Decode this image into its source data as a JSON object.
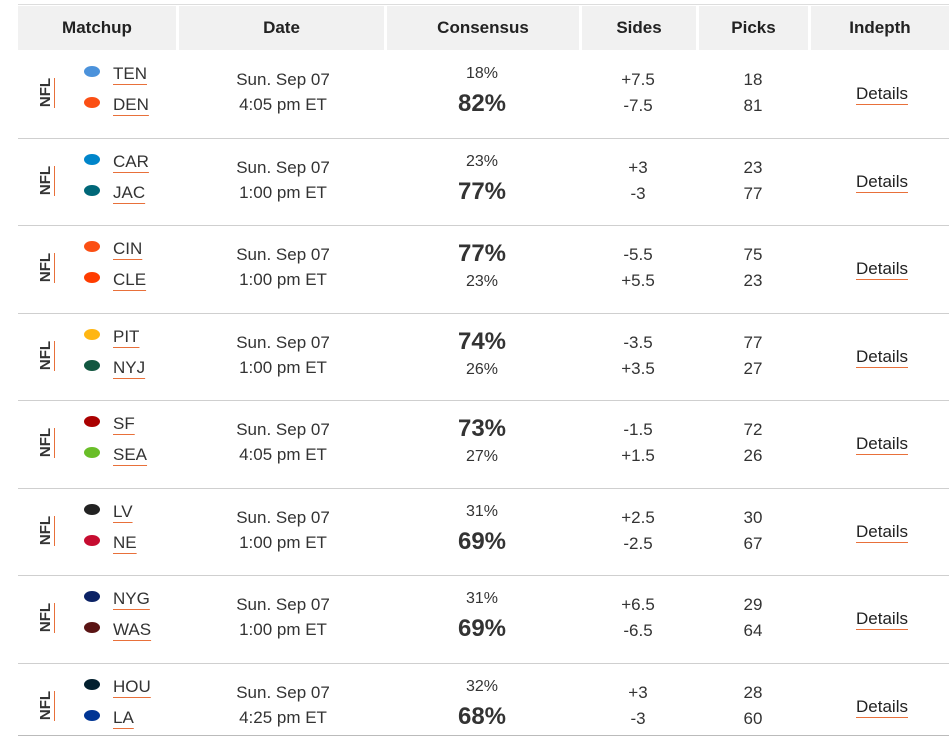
{
  "table": {
    "header": [
      "Matchup",
      "Date",
      "Consensus",
      "Sides",
      "Picks",
      "Indepth"
    ],
    "rows": [
      {
        "league": "NFL",
        "teams": [
          "TEN",
          "DEN"
        ],
        "date": "Sun. Sep 07",
        "time": "4:05 pm ET",
        "consensus": [
          "18%",
          "82%"
        ],
        "sides": [
          "+7.5",
          "-7.5"
        ],
        "picks": [
          18,
          81
        ],
        "details": "Details"
      },
      {
        "league": "NFL",
        "teams": [
          "CAR",
          "JAC"
        ],
        "date": "Sun. Sep 07",
        "time": "1:00 pm ET",
        "consensus": [
          "23%",
          "77%"
        ],
        "sides": [
          "+3",
          "-3"
        ],
        "picks": [
          23,
          77
        ],
        "details": "Details"
      },
      {
        "league": "NFL",
        "teams": [
          "CIN",
          "CLE"
        ],
        "date": "Sun. Sep 07",
        "time": "1:00 pm ET",
        "consensus": [
          "77%",
          "23%"
        ],
        "sides": [
          "-5.5",
          "+5.5"
        ],
        "picks": [
          75,
          23
        ],
        "details": "Details"
      },
      {
        "league": "NFL",
        "teams": [
          "PIT",
          "NYJ"
        ],
        "date": "Sun. Sep 07",
        "time": "1:00 pm ET",
        "consensus": [
          "74%",
          "26%"
        ],
        "sides": [
          "-3.5",
          "+3.5"
        ],
        "picks": [
          77,
          27
        ],
        "details": "Details"
      },
      {
        "league": "NFL",
        "teams": [
          "SF",
          "SEA"
        ],
        "date": "Sun. Sep 07",
        "time": "4:05 pm ET",
        "consensus": [
          "73%",
          "27%"
        ],
        "sides": [
          "-1.5",
          "+1.5"
        ],
        "picks": [
          72,
          26
        ],
        "details": "Details"
      },
      {
        "league": "NFL",
        "teams": [
          "LV",
          "NE"
        ],
        "date": "Sun. Sep 07",
        "time": "1:00 pm ET",
        "consensus": [
          "31%",
          "69%"
        ],
        "sides": [
          "+2.5",
          "-2.5"
        ],
        "picks": [
          30,
          67
        ],
        "details": "Details"
      },
      {
        "league": "NFL",
        "teams": [
          "NYG",
          "WAS"
        ],
        "date": "Sun. Sep 07",
        "time": "1:00 pm ET",
        "consensus": [
          "31%",
          "69%"
        ],
        "sides": [
          "+6.5",
          "-6.5"
        ],
        "picks": [
          29,
          64
        ],
        "details": "Details"
      },
      {
        "league": "NFL",
        "teams": [
          "HOU",
          "LA"
        ],
        "date": "Sun. Sep 07",
        "time": "4:25 pm ET",
        "consensus": [
          "32%",
          "68%"
        ],
        "sides": [
          "+3",
          "-3"
        ],
        "picks": [
          28,
          60
        ],
        "details": "Details"
      }
    ]
  }
}
